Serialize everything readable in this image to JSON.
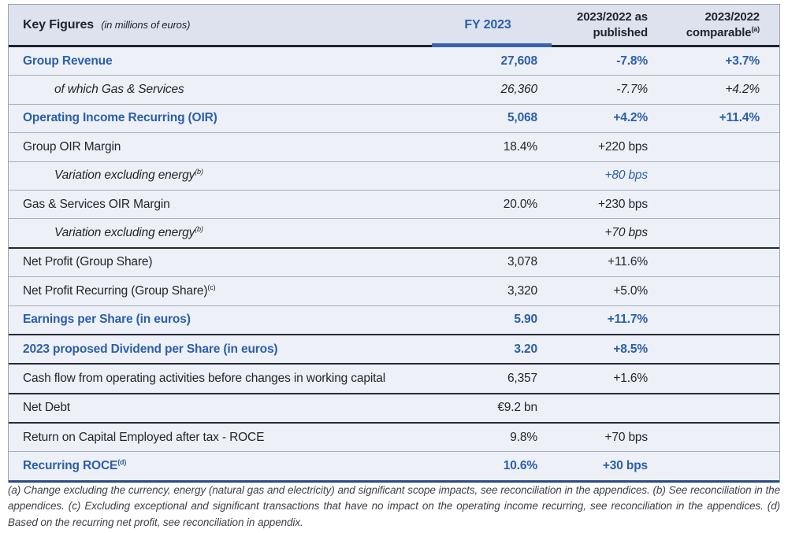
{
  "header": {
    "title": "Key Figures",
    "subtitle": "(in millions of euros)",
    "col_fy": "FY 2023",
    "col_published": "2023/2022 as published",
    "col_comparable": "2023/2022 comparable",
    "col_comparable_sup": "(a)"
  },
  "rows": [
    {
      "label": "Group Revenue",
      "fy": "27,608",
      "pub": "-7.8%",
      "comp": "+3.7%"
    },
    {
      "label": "of which Gas & Services",
      "fy": "26,360",
      "pub": "-7.7%",
      "comp": "+4.2%"
    },
    {
      "label": "Operating Income Recurring (OIR)",
      "fy": "5,068",
      "pub": "+4.2%",
      "comp": "+11.4%"
    },
    {
      "label": "Group OIR Margin",
      "fy": "18.4%",
      "pub": "+220 bps",
      "comp": ""
    },
    {
      "label": "Variation excluding energy",
      "sup": "(b)",
      "fy": "",
      "pub": "+80 bps",
      "comp": ""
    },
    {
      "label": "Gas & Services OIR Margin",
      "fy": "20.0%",
      "pub": "+230 bps",
      "comp": ""
    },
    {
      "label": "Variation excluding energy",
      "sup": "(b)",
      "fy": "",
      "pub": "+70 bps",
      "comp": ""
    },
    {
      "label": "Net Profit (Group Share)",
      "fy": "3,078",
      "pub": "+11.6%",
      "comp": ""
    },
    {
      "label": "Net Profit Recurring (Group Share)",
      "sup": "(c)",
      "fy": "3,320",
      "pub": "+5.0%",
      "comp": ""
    },
    {
      "label": "Earnings per Share (in euros)",
      "fy": "5.90",
      "pub": "+11.7%",
      "comp": ""
    },
    {
      "label": "2023 proposed Dividend per Share (in euros)",
      "fy": "3.20",
      "pub": "+8.5%",
      "comp": ""
    },
    {
      "label": "Cash flow from operating activities before changes in working capital",
      "fy": "6,357",
      "pub": "+1.6%",
      "comp": ""
    },
    {
      "label": "Net Debt",
      "fy": "€9.2 bn",
      "pub": "",
      "comp": ""
    },
    {
      "label": "Return on Capital Employed after tax - ROCE",
      "fy": "9.8%",
      "pub": "+70 bps",
      "comp": ""
    },
    {
      "label": "Recurring ROCE",
      "sup": "(d)",
      "fy": "10.6%",
      "pub": "+30 bps",
      "comp": ""
    }
  ],
  "footnotes": "(a) Change excluding the currency, energy (natural gas and electricity) and significant scope impacts, see reconciliation in the appendices. (b) See reconciliation in the appendices. (c) Excluding exceptional and significant transactions that have no impact on the operating income recurring, see reconciliation in the appendices. (d) Based on the recurring net profit, see reconciliation in appendix.",
  "colors": {
    "accent_blue_text": "#2b5fa8",
    "fy_underline_blue": "#3b63ad",
    "header_band": "#dde2ee",
    "row_background": "#edf0f7",
    "thick_rule": "#262a34",
    "bottom_rule_navy": "#2b4a80"
  }
}
